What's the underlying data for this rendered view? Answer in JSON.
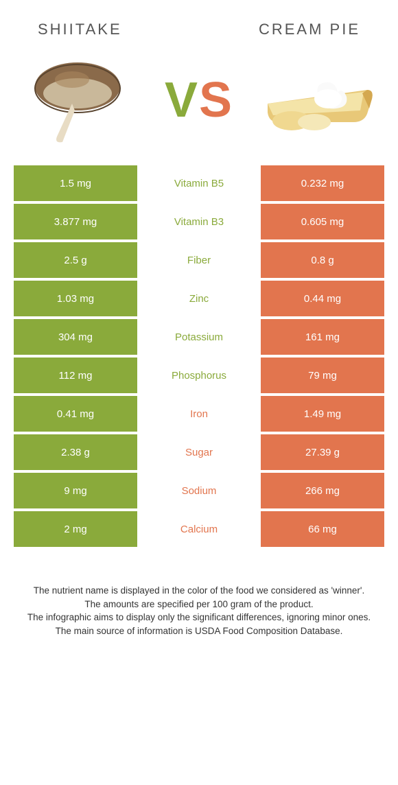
{
  "left": {
    "title": "SHIITAKE",
    "color": "#8aaa3b"
  },
  "right": {
    "title": "CREAM PIE",
    "color": "#e2754e"
  },
  "vs": {
    "v": "V",
    "s": "S"
  },
  "rows": [
    {
      "left": "1.5 mg",
      "mid": "Vitamin B5",
      "right": "0.232 mg",
      "winner": "left"
    },
    {
      "left": "3.877 mg",
      "mid": "Vitamin B3",
      "right": "0.605 mg",
      "winner": "left"
    },
    {
      "left": "2.5 g",
      "mid": "Fiber",
      "right": "0.8 g",
      "winner": "left"
    },
    {
      "left": "1.03 mg",
      "mid": "Zinc",
      "right": "0.44 mg",
      "winner": "left"
    },
    {
      "left": "304 mg",
      "mid": "Potassium",
      "right": "161 mg",
      "winner": "left"
    },
    {
      "left": "112 mg",
      "mid": "Phosphorus",
      "right": "79 mg",
      "winner": "left"
    },
    {
      "left": "0.41 mg",
      "mid": "Iron",
      "right": "1.49 mg",
      "winner": "right"
    },
    {
      "left": "2.38 g",
      "mid": "Sugar",
      "right": "27.39 g",
      "winner": "right"
    },
    {
      "left": "9 mg",
      "mid": "Sodium",
      "right": "266 mg",
      "winner": "right"
    },
    {
      "left": "2 mg",
      "mid": "Calcium",
      "right": "66 mg",
      "winner": "right"
    }
  ],
  "footer": {
    "line1": "The nutrient name is displayed in the color of the food we considered as 'winner'.",
    "line2": "The amounts are specified per 100 gram of the product.",
    "line3": "The infographic aims to display only the significant differences, ignoring minor ones.",
    "line4": "The main source of information is USDA Food Composition Database."
  }
}
